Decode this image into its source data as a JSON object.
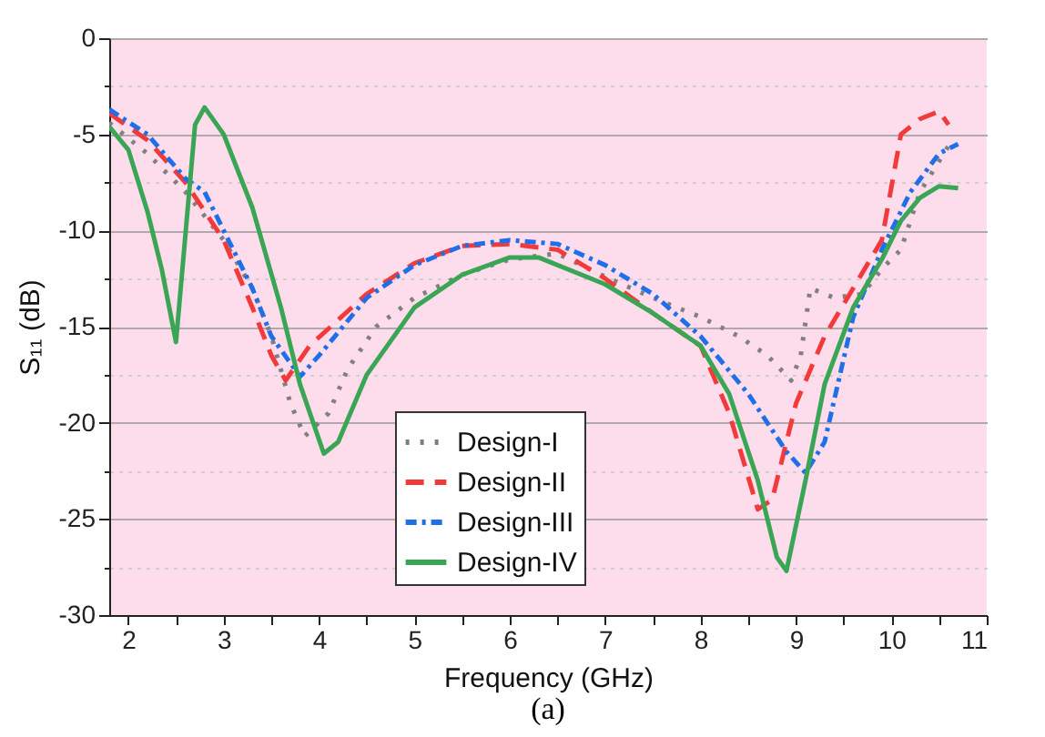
{
  "chart_data": {
    "type": "line",
    "xlabel": "Frequency (GHz)",
    "ylabel": "S₁₁ (dB)",
    "annotations": [
      "(a)"
    ],
    "xlim": [
      1.8,
      11
    ],
    "ylim": [
      -30,
      0
    ],
    "xticks": [
      2,
      {
        "value": 2.5,
        "label": null
      },
      3,
      {
        "value": 3.5,
        "label": null
      },
      4,
      {
        "value": 4.5,
        "label": null
      },
      5,
      {
        "value": 5.5,
        "label": null
      },
      6,
      {
        "value": 6.5,
        "label": null
      },
      7,
      {
        "value": 7.5,
        "label": null
      },
      8,
      {
        "value": 8.5,
        "label": null
      },
      9,
      {
        "value": 9.5,
        "label": null
      },
      10,
      {
        "value": 10.5,
        "label": null
      },
      11
    ],
    "yticks": [
      -30,
      {
        "value": -27.5,
        "label": null
      },
      -25,
      {
        "value": -22.5,
        "label": null
      },
      -20,
      {
        "value": -17.5,
        "label": null
      },
      -15,
      {
        "value": -12.5,
        "label": null
      },
      -10,
      {
        "value": -7.5,
        "label": null
      },
      -5,
      {
        "value": -2.5,
        "label": null
      },
      0
    ],
    "grid": "y",
    "legend": "bottom",
    "marker": "none",
    "series": [
      {
        "name": "Design-I",
        "color": "#808080",
        "line_style": "dotted",
        "x": [
          1.8,
          2.2,
          2.6,
          3,
          3.3,
          3.5,
          3.7,
          3.85,
          4.1,
          4.3,
          4.6,
          5,
          5.5,
          6,
          6.5,
          7,
          7.5,
          8,
          8.4,
          8.7,
          8.95,
          9.05,
          9.15,
          9.4,
          9.7,
          9.9,
          10.1,
          10.3,
          10.6
        ],
        "values": [
          -4.4,
          -6,
          -8,
          -10.5,
          -13,
          -15.5,
          -19,
          -20.7,
          -19.5,
          -17.2,
          -15,
          -13.5,
          -12.3,
          -11.5,
          -11.2,
          -12.4,
          -13.5,
          -14.5,
          -15.5,
          -16.5,
          -17.8,
          -16.5,
          -13,
          -13.5,
          -13.3,
          -12,
          -11,
          -8,
          -5.6
        ]
      },
      {
        "name": "Design-II",
        "color": "#f23a3a",
        "line_style": "dashed",
        "x": [
          1.8,
          2.2,
          2.6,
          3,
          3.3,
          3.5,
          3.65,
          3.9,
          4.5,
          5,
          5.5,
          6,
          6.5,
          7,
          7.5,
          8,
          8.3,
          8.6,
          8.75,
          9,
          9.3,
          9.6,
          9.9,
          10.1,
          10.3,
          10.5,
          10.6
        ],
        "values": [
          -3.9,
          -5.3,
          -7.5,
          -10.5,
          -14,
          -16.5,
          -17.8,
          -16,
          -13.3,
          -11.7,
          -10.8,
          -10.7,
          -11,
          -12.5,
          -14.3,
          -16,
          -19.5,
          -24.5,
          -24,
          -19,
          -15.5,
          -13,
          -10.5,
          -5,
          -4.2,
          -3.8,
          -4.5
        ]
      },
      {
        "name": "Design-III",
        "color": "#1f6fe8",
        "line_style": "dashdot",
        "x": [
          1.8,
          2.2,
          2.6,
          2.8,
          3,
          3.3,
          3.5,
          3.8,
          4,
          4.5,
          5,
          5.5,
          6,
          6.5,
          7,
          7.5,
          8,
          8.5,
          8.9,
          9.1,
          9.3,
          9.6,
          9.9,
          10.2,
          10.5,
          10.7
        ],
        "values": [
          -3.7,
          -5,
          -7.3,
          -8,
          -10,
          -13,
          -15.5,
          -17.6,
          -16.5,
          -13.5,
          -11.8,
          -10.8,
          -10.5,
          -10.7,
          -11.8,
          -13.3,
          -15.5,
          -18.5,
          -21.5,
          -22.6,
          -21,
          -14.5,
          -11,
          -8,
          -6,
          -5.5
        ]
      },
      {
        "name": "Design-IV",
        "color": "#3aa655",
        "line_style": "solid",
        "x": [
          1.8,
          2,
          2.2,
          2.35,
          2.5,
          2.7,
          2.8,
          3,
          3.3,
          3.6,
          3.8,
          4.05,
          4.2,
          4.5,
          5,
          5.5,
          6,
          6.3,
          7,
          7.5,
          8,
          8.3,
          8.6,
          8.8,
          8.9,
          9.1,
          9.3,
          9.6,
          9.9,
          10.1,
          10.3,
          10.5,
          10.7
        ],
        "values": [
          -4.6,
          -5.8,
          -9,
          -12,
          -15.8,
          -4.5,
          -3.6,
          -5,
          -8.8,
          -14,
          -18,
          -21.6,
          -21,
          -17.5,
          -14,
          -12.3,
          -11.4,
          -11.4,
          -12.8,
          -14.3,
          -16,
          -18.5,
          -23,
          -27,
          -27.7,
          -23,
          -18,
          -14,
          -11.5,
          -9.5,
          -8.3,
          -7.7,
          -7.8
        ]
      }
    ]
  }
}
